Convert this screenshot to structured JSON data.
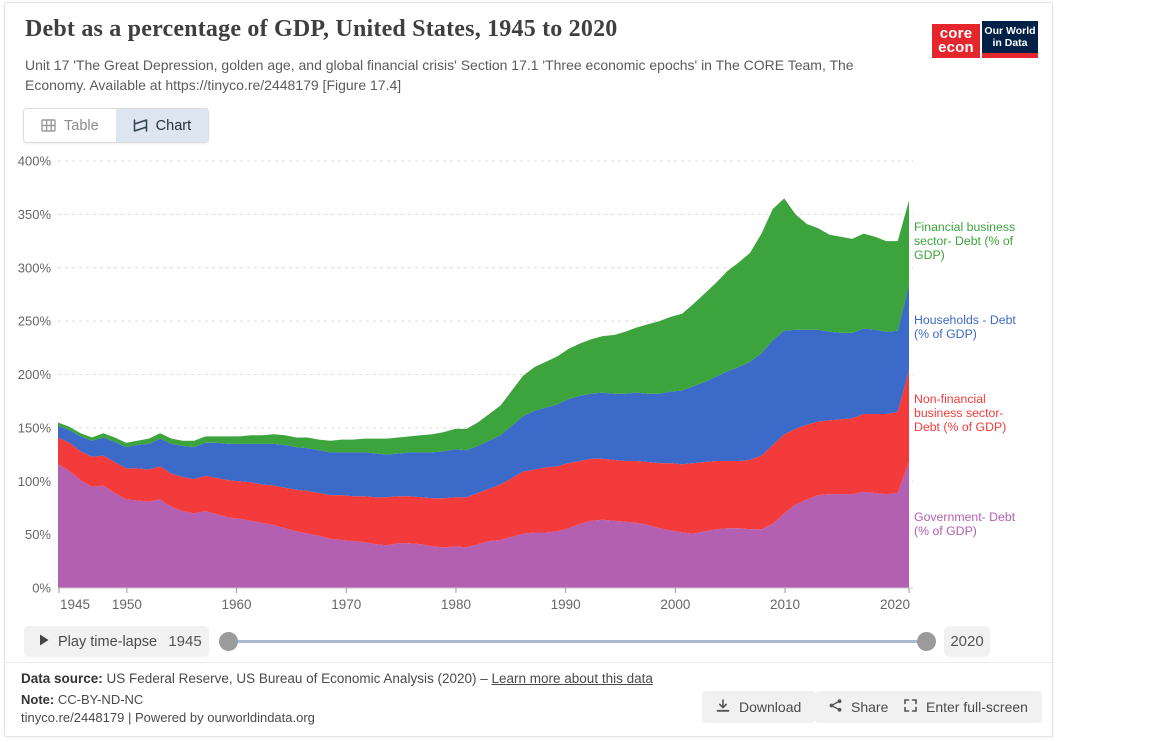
{
  "header": {
    "title": "Debt as a percentage of GDP, United States, 1945 to 2020",
    "subtitle": "Unit 17 'The Great Depression, golden age, and global financial crisis' Section 17.1 'Three economic epochs' in The CORE Team, The Economy. Available at https://tinyco.re/2448179 [Figure 17.4]",
    "logos": {
      "core_line1": "core",
      "core_line2": "econ",
      "owid_line1": "Our World",
      "owid_line2": "in Data",
      "core_color": "#e5262d",
      "owid_navy": "#002147"
    }
  },
  "tabs": [
    {
      "label": "Table",
      "icon": "table-icon",
      "active": false
    },
    {
      "label": "Chart",
      "icon": "chart-icon",
      "active": true
    }
  ],
  "chart_data": {
    "type": "area",
    "stacked": true,
    "title": "Debt as a percentage of GDP, United States, 1945 to 2020",
    "ylabel": "Debt (% of GDP)",
    "ylim": [
      0,
      400
    ],
    "y_ticks": [
      0,
      50,
      100,
      150,
      200,
      250,
      300,
      350,
      400
    ],
    "y_tick_suffix": "%",
    "x_ticks": [
      1945,
      1950,
      1960,
      1970,
      1980,
      1990,
      2000,
      2010,
      2020
    ],
    "grid": "dashed-horizontal",
    "legend_position": "right",
    "years": [
      1945,
      1946,
      1947,
      1948,
      1949,
      1950,
      1951,
      1952,
      1953,
      1954,
      1955,
      1956,
      1957,
      1958,
      1959,
      1960,
      1961,
      1962,
      1963,
      1964,
      1965,
      1966,
      1967,
      1968,
      1969,
      1970,
      1971,
      1972,
      1973,
      1974,
      1975,
      1976,
      1977,
      1978,
      1979,
      1980,
      1981,
      1982,
      1983,
      1984,
      1985,
      1986,
      1987,
      1988,
      1989,
      1990,
      1991,
      1992,
      1993,
      1994,
      1995,
      1996,
      1997,
      1998,
      1999,
      2000,
      2001,
      2002,
      2003,
      2004,
      2005,
      2006,
      2007,
      2008,
      2009,
      2010,
      2011,
      2012,
      2013,
      2014,
      2015,
      2016,
      2017,
      2018,
      2019,
      2020
    ],
    "series": [
      {
        "id": "government",
        "label": "Government- Debt (% of GDP)",
        "color": "#B35FB2",
        "values": [
          116,
          110,
          101,
          95,
          96,
          89,
          83,
          82,
          81,
          83,
          76,
          72,
          70,
          72,
          69,
          66,
          65,
          63,
          61,
          59,
          56,
          53,
          51,
          49,
          46,
          45,
          44,
          43,
          41,
          40,
          42,
          42,
          41,
          39,
          38,
          39,
          38,
          41,
          44,
          45,
          48,
          51,
          52,
          52,
          53,
          56,
          60,
          63,
          64,
          63,
          62,
          61,
          59,
          56,
          54,
          52,
          51,
          53,
          55,
          56,
          56,
          55,
          55,
          60,
          70,
          78,
          83,
          87,
          88,
          88,
          88,
          90,
          89,
          88,
          89,
          118
        ]
      },
      {
        "id": "nonfinancial",
        "label": "Non-financial business sector- Debt (% of GDP)",
        "color": "#F43B3B",
        "values": [
          25,
          26,
          27,
          28,
          28,
          29,
          29,
          30,
          30,
          31,
          31,
          32,
          32,
          33,
          34,
          35,
          35,
          36,
          36,
          37,
          38,
          39,
          40,
          40,
          41,
          42,
          42,
          43,
          44,
          45,
          44,
          44,
          44,
          45,
          46,
          46,
          47,
          48,
          49,
          52,
          55,
          58,
          59,
          61,
          61,
          61,
          59,
          58,
          57,
          57,
          57,
          58,
          59,
          61,
          63,
          64,
          66,
          65,
          64,
          63,
          63,
          65,
          69,
          74,
          74,
          71,
          70,
          69,
          69,
          70,
          71,
          73,
          74,
          75,
          76,
          86
        ]
      },
      {
        "id": "households",
        "label": "Households - Debt (% of GDP)",
        "color": "#3B6AC8",
        "values": [
          11,
          12,
          14,
          15,
          17,
          19,
          20,
          22,
          24,
          26,
          28,
          29,
          30,
          31,
          33,
          34,
          35,
          36,
          38,
          39,
          40,
          40,
          40,
          40,
          40,
          40,
          41,
          41,
          41,
          40,
          40,
          41,
          42,
          43,
          44,
          45,
          44,
          44,
          45,
          46,
          49,
          52,
          55,
          56,
          58,
          60,
          61,
          61,
          62,
          62,
          63,
          64,
          64,
          65,
          67,
          69,
          72,
          75,
          79,
          84,
          88,
          92,
          96,
          98,
          97,
          93,
          89,
          86,
          83,
          81,
          80,
          80,
          79,
          77,
          76,
          80
        ]
      },
      {
        "id": "financial",
        "label": "Financial business sector- Debt (% of GDP)",
        "color": "#3DA33D",
        "values": [
          3,
          3,
          3,
          3,
          4,
          4,
          4,
          4,
          5,
          5,
          5,
          5,
          6,
          6,
          6,
          7,
          7,
          8,
          8,
          9,
          9,
          9,
          10,
          10,
          11,
          12,
          12,
          13,
          14,
          15,
          15,
          15,
          16,
          17,
          18,
          19,
          20,
          22,
          25,
          28,
          33,
          38,
          41,
          43,
          45,
          47,
          49,
          51,
          53,
          55,
          58,
          61,
          65,
          68,
          70,
          72,
          77,
          83,
          88,
          94,
          98,
          102,
          112,
          123,
          124,
          108,
          99,
          95,
          91,
          90,
          88,
          89,
          87,
          85,
          84,
          79
        ]
      }
    ]
  },
  "timeline": {
    "play_label": "Play time-lapse",
    "play_icon": "play-icon",
    "start_year": "1945",
    "end_year": "2020"
  },
  "footer": {
    "source_label": "Data source:",
    "source_text": "US Federal Reserve, US Bureau of Economic Analysis (2020) –",
    "link_label": "Learn more about this data",
    "note_label": "Note:",
    "note_text": "CC-BY-ND-NC",
    "attribution": "tinyco.re/2448179 | Powered by ourworldindata.org",
    "buttons": [
      {
        "label": "Download",
        "icon": "download-icon"
      },
      {
        "label": "Share",
        "icon": "share-icon"
      },
      {
        "label": "Enter full-screen",
        "icon": "fullscreen-icon"
      }
    ]
  }
}
